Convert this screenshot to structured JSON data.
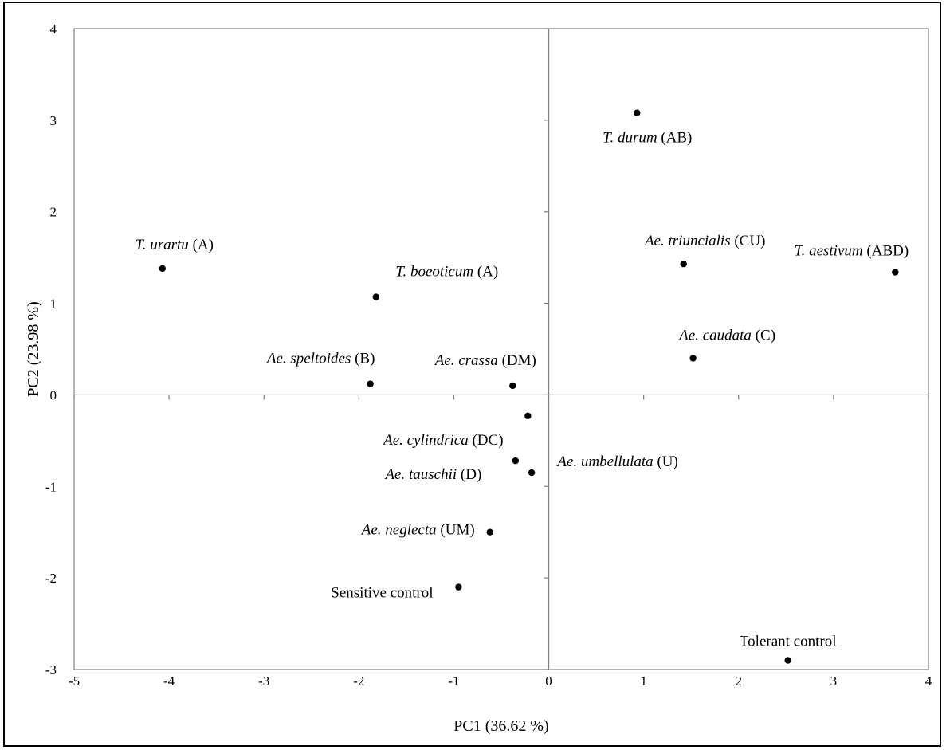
{
  "chart_data": {
    "type": "scatter",
    "xlabel": "PC1 (36.62 %)",
    "ylabel": "PC2 (23.98 %)",
    "xlim": [
      -5,
      4
    ],
    "ylim": [
      -3,
      4
    ],
    "xticks": [
      "-5",
      "-4",
      "-3",
      "-2",
      "-1",
      "0",
      "1",
      "2",
      "3",
      "4"
    ],
    "yticks": [
      "-3",
      "-2",
      "-1",
      "0",
      "1",
      "2",
      "3",
      "4"
    ],
    "grid": false,
    "points": [
      {
        "name": "T. urartu",
        "genome": "(A)",
        "x": -4.07,
        "y": 1.38
      },
      {
        "name": "T. boeoticum",
        "genome": "(A)",
        "x": -1.82,
        "y": 1.07
      },
      {
        "name": "Ae. speltoides",
        "genome": "(B)",
        "x": -1.88,
        "y": 0.12
      },
      {
        "name": "Ae. crassa",
        "genome": "(DM)",
        "x": -0.38,
        "y": 0.1
      },
      {
        "name": "Ae. cylindrica",
        "genome": "(DC)",
        "x": -0.22,
        "y": -0.23
      },
      {
        "name": "Ae. tauschii",
        "genome": "(D)",
        "x": -0.35,
        "y": -0.72
      },
      {
        "name": "Ae. umbellulata",
        "genome": "(U)",
        "x": -0.18,
        "y": -0.85
      },
      {
        "name": "Ae. neglecta",
        "genome": "(UM)",
        "x": -0.62,
        "y": -1.5
      },
      {
        "name": "Sensitive control",
        "genome": "",
        "x": -0.95,
        "y": -2.1
      },
      {
        "name": "T. durum",
        "genome": "(AB)",
        "x": 0.93,
        "y": 3.08
      },
      {
        "name": "Ae. triuncialis",
        "genome": "(CU)",
        "x": 1.42,
        "y": 1.43
      },
      {
        "name": "T. aestivum",
        "genome": "(ABD)",
        "x": 3.65,
        "y": 1.34
      },
      {
        "name": "Ae. caudata",
        "genome": "(C)",
        "x": 1.52,
        "y": 0.4
      },
      {
        "name": "Tolerant control",
        "genome": "",
        "x": 2.52,
        "y": -2.9
      }
    ]
  }
}
